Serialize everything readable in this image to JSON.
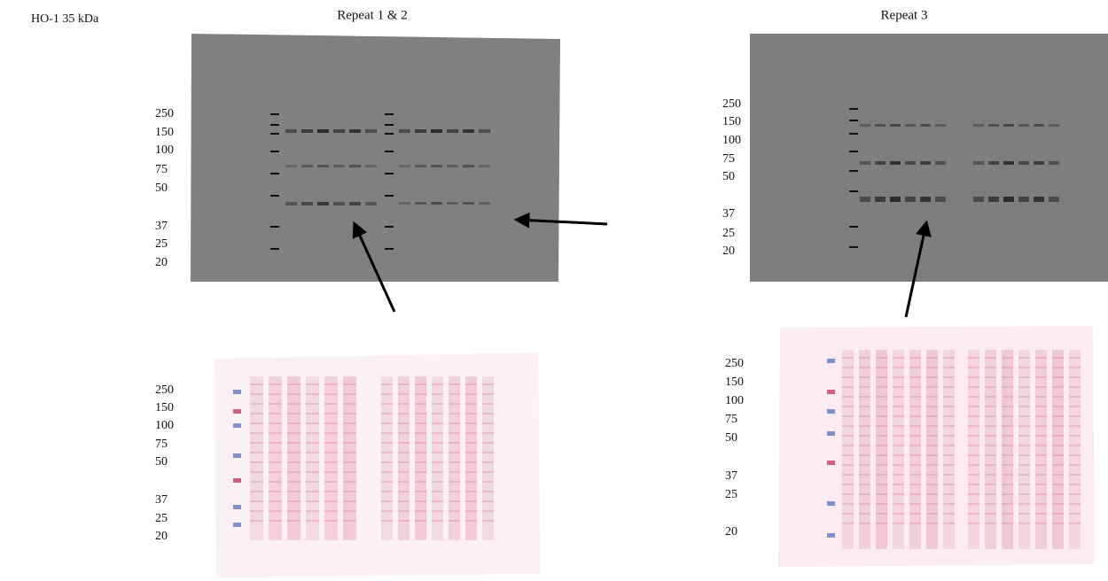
{
  "header": {
    "label": "HO-1 35 kDa"
  },
  "panels": [
    {
      "title": "Repeat 1 & 2",
      "blot_markers": [
        "250",
        "150",
        "100",
        "75",
        "50",
        "37",
        "25",
        "20"
      ],
      "stain_markers": [
        "250",
        "150",
        "100",
        "75",
        "50",
        "37",
        "25",
        "20"
      ]
    },
    {
      "title": "Repeat 3",
      "blot_markers": [
        "250",
        "150",
        "100",
        "75",
        "50",
        "37",
        "25",
        "20"
      ],
      "stain_markers": [
        "250",
        "150",
        "100",
        "75",
        "50",
        "37",
        "25",
        "20"
      ]
    }
  ]
}
